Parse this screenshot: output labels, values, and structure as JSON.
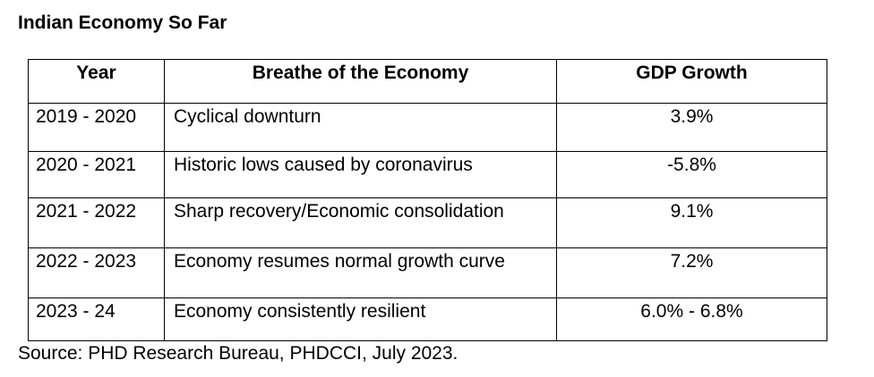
{
  "document": {
    "title": "Indian Economy So Far",
    "source": "Source: PHD Research Bureau, PHDCCI, July 2023."
  },
  "table": {
    "headers": {
      "year": "Year",
      "description": "Breathe of the Economy",
      "gdp": "GDP Growth"
    },
    "rows": [
      {
        "year": "2019 - 2020",
        "description": "Cyclical downturn",
        "gdp": "3.9%"
      },
      {
        "year": "2020 - 2021",
        "description": "Historic lows caused by coronavirus",
        "gdp": "-5.8%"
      },
      {
        "year": "2021 - 2022",
        "description": "Sharp recovery/Economic consolidation",
        "gdp": "9.1%"
      },
      {
        "year": "2022 - 2023",
        "description": "Economy resumes normal growth curve",
        "gdp": "7.2%"
      },
      {
        "year": "2023 - 24",
        "description": "Economy consistently resilient",
        "gdp": "6.0% - 6.8%"
      }
    ]
  }
}
